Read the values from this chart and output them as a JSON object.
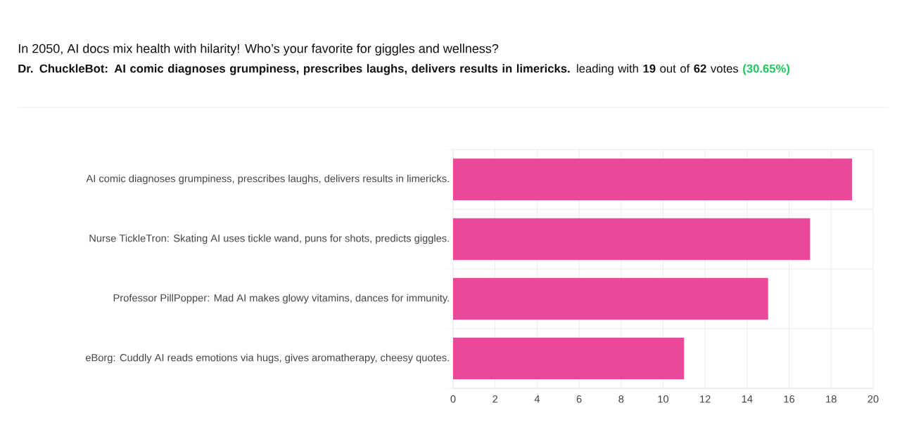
{
  "chart_data": {
    "type": "bar",
    "orientation": "horizontal",
    "title": "In 2050, AI docs mix health with hilarity! Who’s your favorite for giggles and wellness?",
    "subtitle": "**Dr. ChuckleBot: AI comic diagnoses grumpiness, prescribes laughs, delivers results in limericks.** leading with **19** out of **62** votes",
    "annotations": [
      "(30.65%)"
    ],
    "categories": [
      "AI comic diagnoses grumpiness, prescribes laughs, delivers results in limericks.",
      "Nurse TickleTron: Skating AI uses tickle wand, puns for shots, predicts giggles.",
      "Professor PillPopper: Mad AI makes glowy vitamins, dances for immunity.",
      "eBorg: Cuddly AI reads emotions via hugs, gives aromatherapy, cheesy quotes."
    ],
    "values": [
      19,
      17,
      15,
      11
    ],
    "color": "#ec4899",
    "xlim": [
      0,
      20
    ],
    "xticks": [
      0,
      2,
      4,
      6,
      8,
      10,
      12,
      14,
      16,
      18,
      20
    ],
    "grid": true
  }
}
